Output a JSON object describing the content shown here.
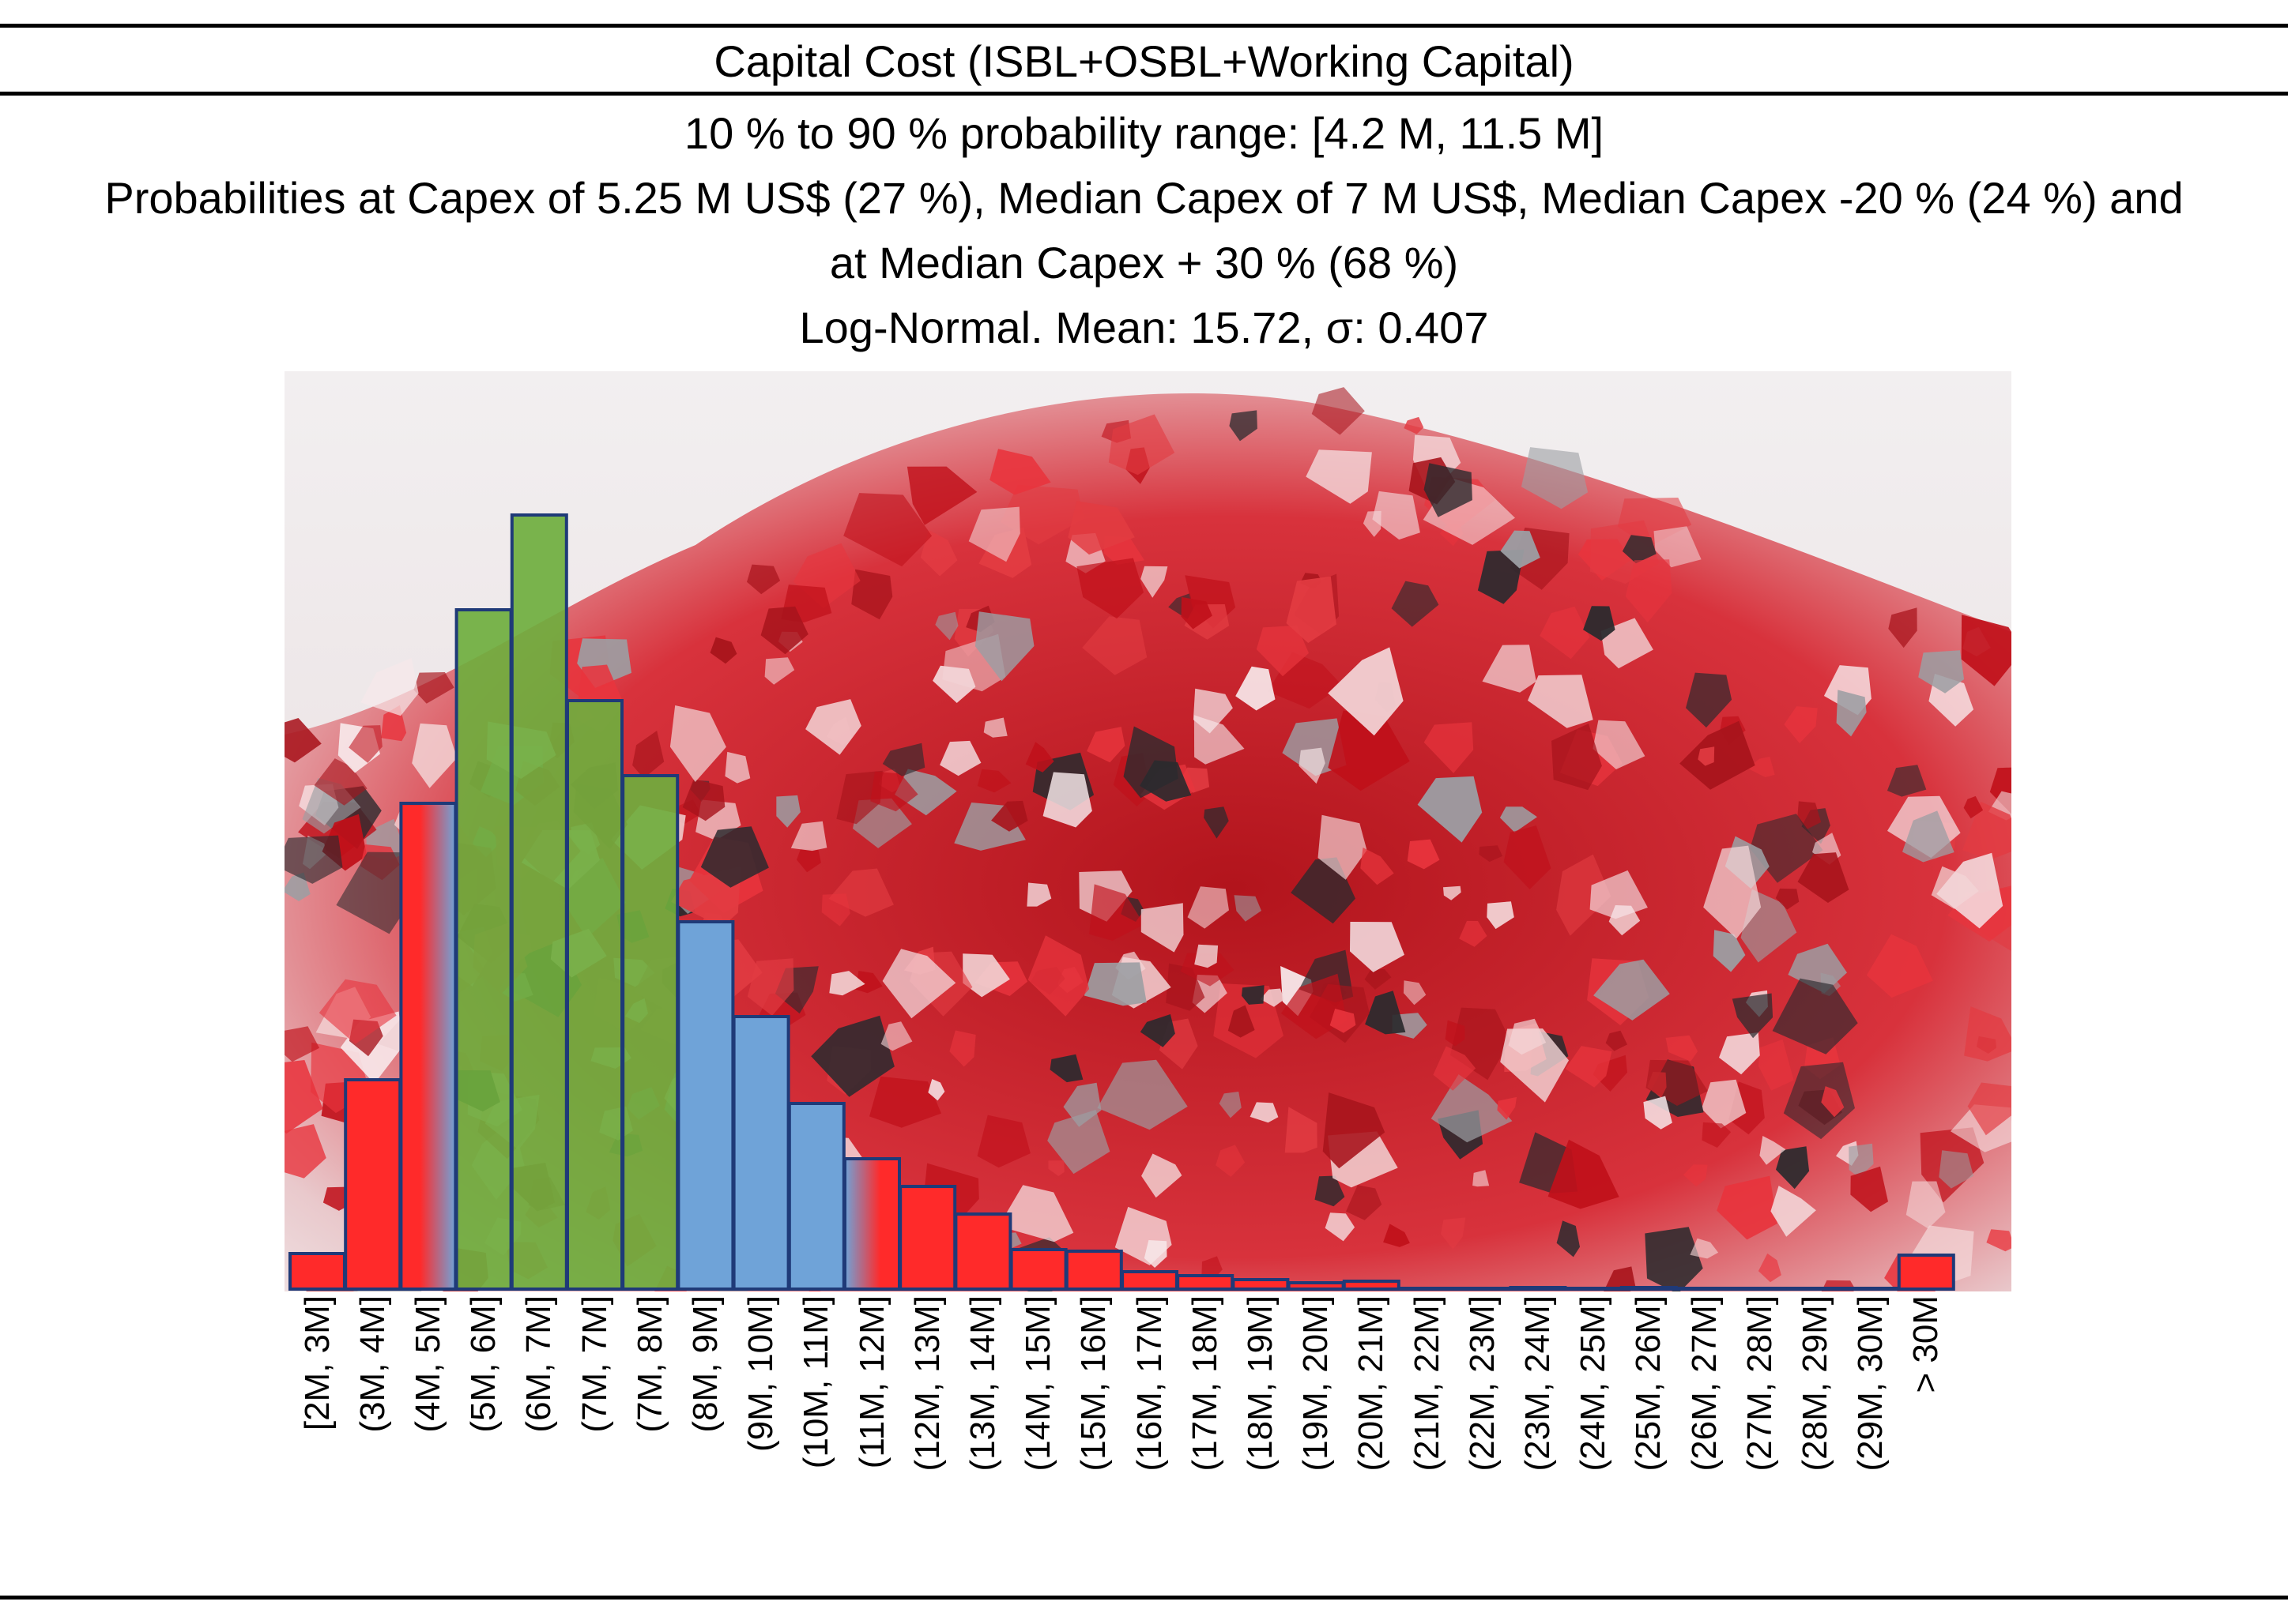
{
  "header": {
    "title": "Capital Cost (ISBL+OSBL+Working Capital)",
    "subtitle_lines": [
      "10 % to 90 % probability range: [4.2 M, 11.5 M]",
      "Probabilities at Capex of 5.25 M US$ (27 %), Median Capex of 7 M US$, Median Capex -20 % (24 %) and",
      "at Median Capex + 30 % (68 %)",
      "Log-Normal. Mean: 15.72, σ: 0.407"
    ]
  },
  "colors": {
    "red": "#ff2a2a",
    "green": "#6fae3e",
    "blue": "#6fa3d8",
    "edge": "#1f3a78",
    "background_photo": "red and clear crushed glass pile"
  },
  "chart_data": {
    "type": "bar",
    "title": "Capital Cost (ISBL+OSBL+Working Capital)",
    "xlabel": "",
    "ylabel": "",
    "grid": false,
    "categories": [
      "[2M, 3M]",
      "(3M, 4M]",
      "(4M, 5M]",
      "(5M, 6M]",
      "(6M, 7M]",
      "(7M, 7M]",
      "(7M, 8M]",
      "(8M, 9M]",
      "(9M, 10M]",
      "(10M, 11M]",
      "(11M, 12M]",
      "(12M, 13M]",
      "(13M, 14M]",
      "(14M, 15M]",
      "(15M, 16M]",
      "(16M, 17M]",
      "(17M, 18M]",
      "(18M, 19M]",
      "(19M, 20M]",
      "(20M, 21M]",
      "(21M, 22M]",
      "(22M, 23M]",
      "(23M, 24M]",
      "(24M, 25M]",
      "(25M, 26M]",
      "(26M, 27M]",
      "(27M, 28M]",
      "(28M, 29M]",
      "(29M, 30M]",
      "> 30M"
    ],
    "values": [
      45,
      265,
      615,
      860,
      980,
      745,
      650,
      465,
      345,
      235,
      165,
      130,
      95,
      50,
      48,
      22,
      17,
      12,
      8,
      10,
      1,
      1,
      2,
      1,
      2,
      1,
      1,
      1,
      1,
      43
    ],
    "bar_colors": [
      "red",
      "red",
      "red-blue",
      "green",
      "green",
      "green",
      "green",
      "blue",
      "blue",
      "blue",
      "blue-red",
      "red",
      "red",
      "red",
      "red",
      "red",
      "red",
      "red",
      "red",
      "red",
      "red",
      "red",
      "red",
      "red",
      "red",
      "red",
      "red",
      "red",
      "red",
      "red"
    ],
    "ylim": [
      0,
      1000
    ]
  }
}
